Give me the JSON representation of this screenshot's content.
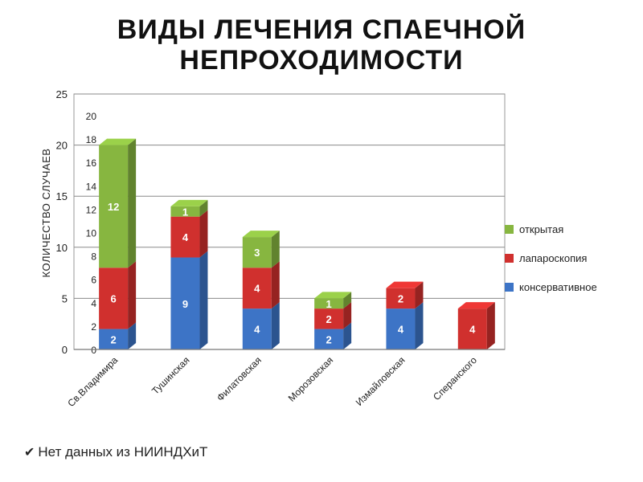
{
  "title_line1": "ВИДЫ ЛЕЧЕНИЯ СПАЕЧНОЙ",
  "title_line2": "НЕПРОХОДИМОСТИ",
  "footer_text": "Нет данных из НИИНДХиТ",
  "chart_data": {
    "type": "bar",
    "stacked": true,
    "three_d": true,
    "ylabel": "КОЛИЧЕСТВО СЛУЧАЕВ",
    "ylim": [
      0,
      25
    ],
    "y_ticks": [
      0,
      5,
      10,
      15,
      20,
      25
    ],
    "grid": true,
    "legend_position": "right",
    "categories": [
      "Св.Владимира",
      "Тушинская",
      "Филатовская",
      "Морозовская",
      "Измайловская",
      "Сперанского"
    ],
    "series": [
      {
        "name": "консервативное",
        "color": "#3d74c6",
        "values": [
          2,
          9,
          4,
          2,
          4,
          0
        ]
      },
      {
        "name": "лапароскопия",
        "color": "#d0302e",
        "values": [
          6,
          4,
          4,
          2,
          2,
          4
        ]
      },
      {
        "name": "открытая",
        "color": "#87b640",
        "values": [
          12,
          1,
          3,
          1,
          0,
          0
        ]
      }
    ],
    "back_axis_ticks": [
      0,
      2,
      4,
      6,
      8,
      10,
      12,
      14,
      16,
      18,
      20
    ]
  }
}
